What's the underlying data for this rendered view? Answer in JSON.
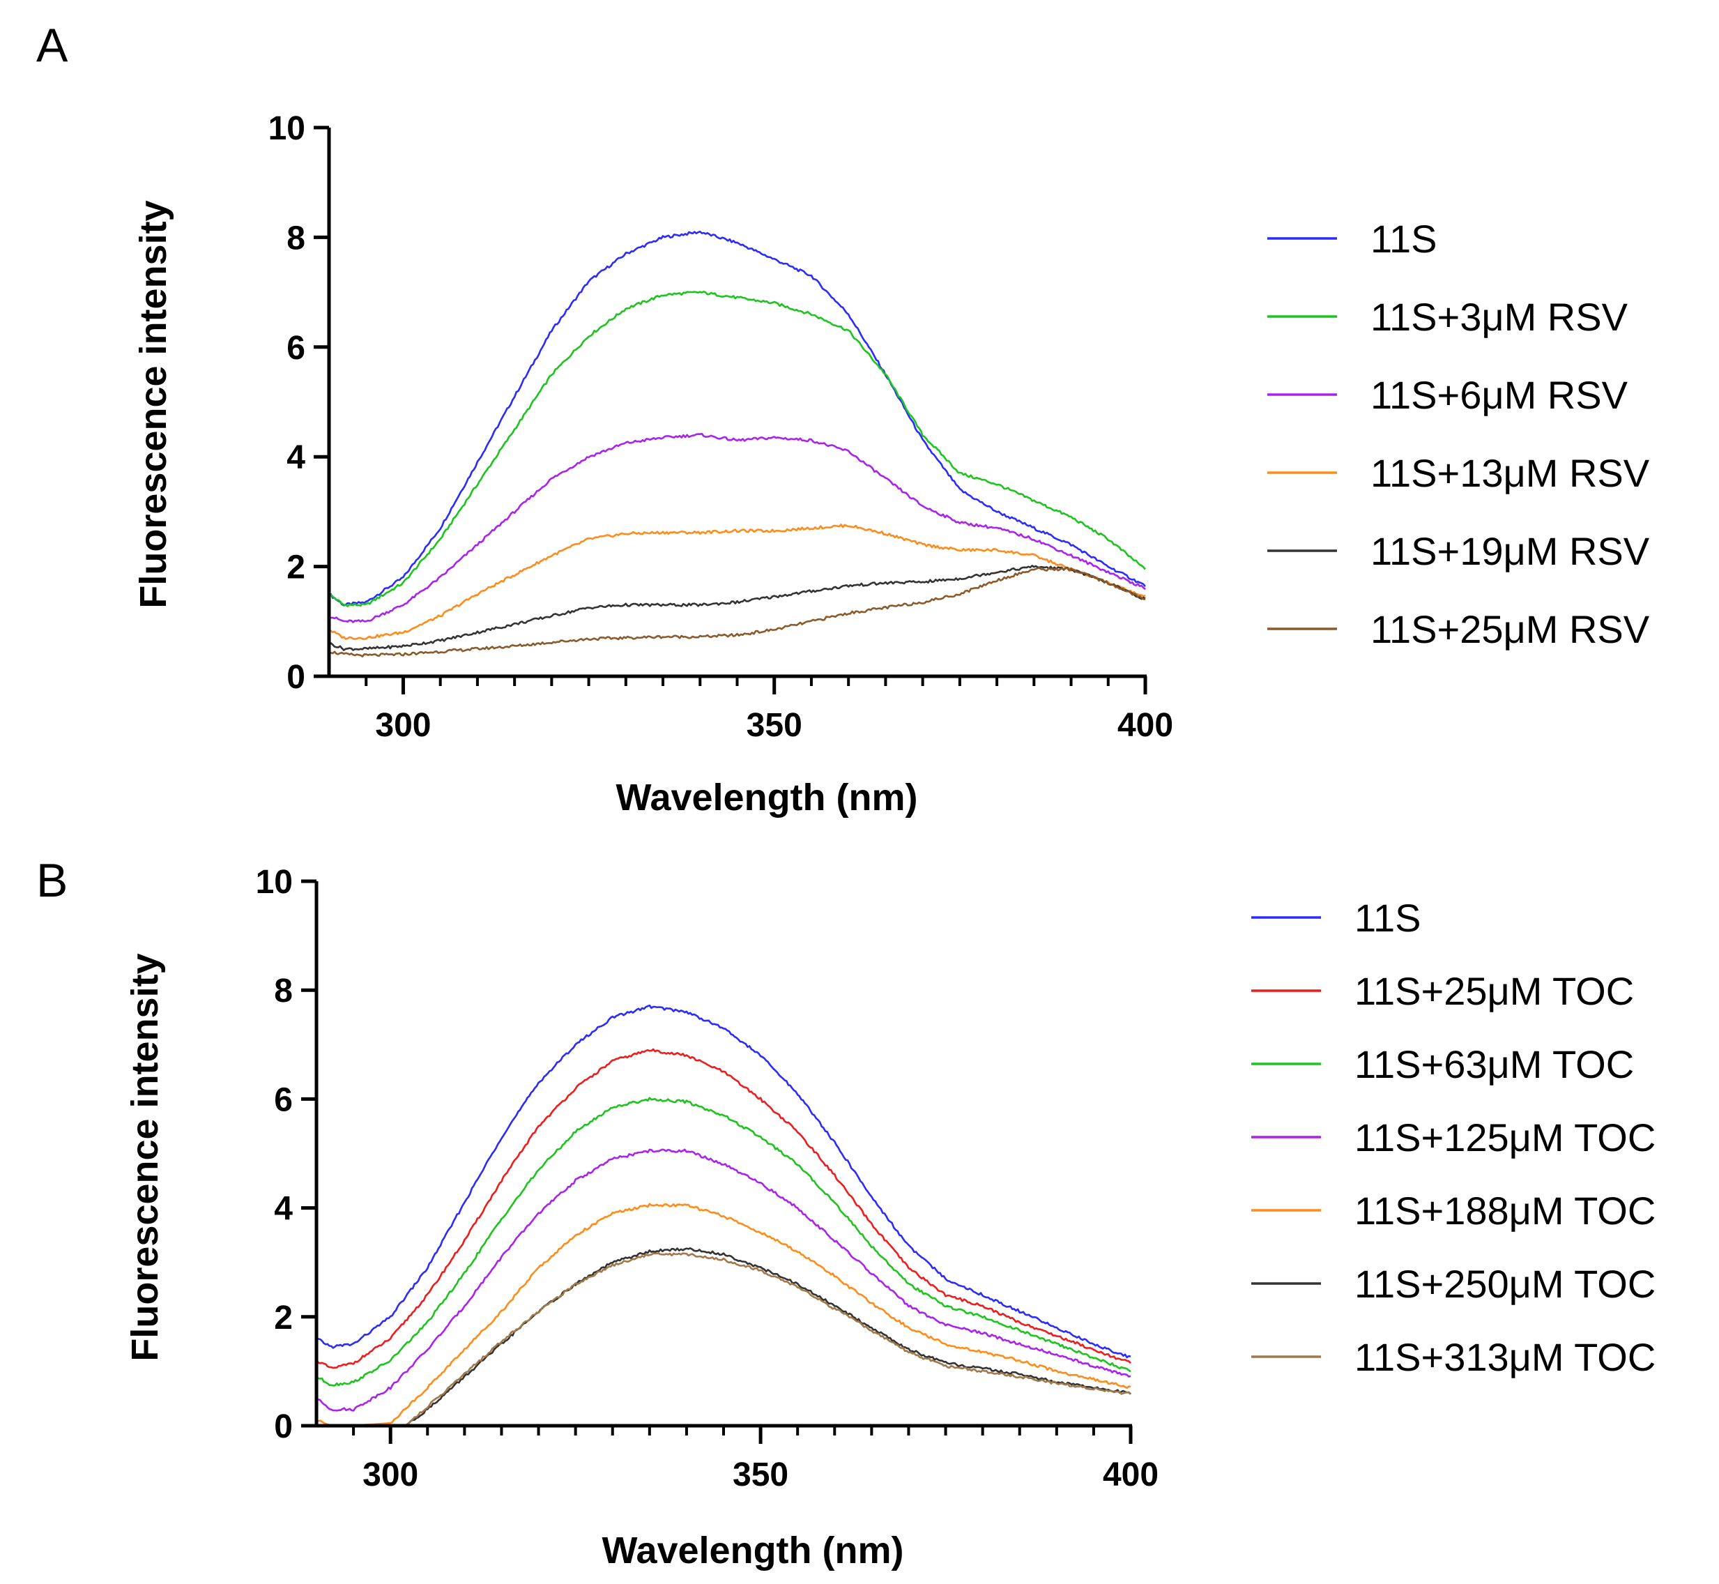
{
  "chart_data": [
    {
      "panel": "A",
      "type": "line",
      "xlabel": "Wavelength (nm)",
      "ylabel": "Fluorescence intensity",
      "xlim": [
        290,
        400
      ],
      "ylim": [
        0,
        10
      ],
      "xticks": [
        300,
        350,
        400
      ],
      "yticks": [
        0,
        2,
        4,
        6,
        8,
        10
      ],
      "legend_position": "right",
      "series": [
        {
          "name": "11S",
          "color": "#2b2bff",
          "x": [
            290,
            292,
            295,
            300,
            305,
            310,
            315,
            320,
            325,
            330,
            335,
            340,
            345,
            350,
            355,
            360,
            365,
            370,
            375,
            380,
            385,
            390,
            395,
            400
          ],
          "y": [
            1.5,
            1.3,
            1.35,
            1.8,
            2.7,
            3.9,
            5.1,
            6.3,
            7.2,
            7.7,
            8.0,
            8.1,
            7.9,
            7.6,
            7.3,
            6.6,
            5.5,
            4.3,
            3.4,
            3.0,
            2.7,
            2.4,
            2.0,
            1.65
          ]
        },
        {
          "name": "11S+3μM RSV",
          "color": "#1ec41e",
          "x": [
            290,
            292,
            295,
            300,
            305,
            310,
            315,
            320,
            325,
            330,
            335,
            340,
            345,
            350,
            355,
            360,
            365,
            370,
            375,
            380,
            385,
            390,
            395,
            400
          ],
          "y": [
            1.5,
            1.3,
            1.3,
            1.7,
            2.5,
            3.5,
            4.5,
            5.5,
            6.2,
            6.7,
            6.95,
            7.0,
            6.9,
            6.8,
            6.6,
            6.3,
            5.5,
            4.4,
            3.7,
            3.5,
            3.2,
            2.9,
            2.5,
            1.95
          ]
        },
        {
          "name": "11S+6μM RSV",
          "color": "#aa22ee",
          "x": [
            290,
            292,
            295,
            300,
            305,
            310,
            315,
            320,
            325,
            330,
            335,
            340,
            345,
            350,
            355,
            360,
            365,
            370,
            375,
            380,
            385,
            390,
            395,
            400
          ],
          "y": [
            1.1,
            1.0,
            1.0,
            1.3,
            1.8,
            2.4,
            3.0,
            3.6,
            4.0,
            4.25,
            4.35,
            4.4,
            4.3,
            4.35,
            4.3,
            4.1,
            3.6,
            3.1,
            2.8,
            2.7,
            2.5,
            2.2,
            1.9,
            1.6
          ]
        },
        {
          "name": "11S+13μM RSV",
          "color": "#ff8c1a",
          "x": [
            290,
            292,
            295,
            300,
            305,
            310,
            315,
            320,
            325,
            330,
            335,
            340,
            345,
            350,
            355,
            360,
            365,
            370,
            375,
            380,
            385,
            390,
            395,
            400
          ],
          "y": [
            0.85,
            0.7,
            0.7,
            0.8,
            1.1,
            1.5,
            1.85,
            2.2,
            2.5,
            2.6,
            2.62,
            2.62,
            2.65,
            2.65,
            2.7,
            2.75,
            2.6,
            2.4,
            2.3,
            2.3,
            2.2,
            1.95,
            1.7,
            1.45
          ]
        },
        {
          "name": "11S+19μM RSV",
          "color": "#333333",
          "x": [
            290,
            292,
            295,
            300,
            305,
            310,
            315,
            320,
            325,
            330,
            335,
            340,
            345,
            350,
            355,
            360,
            365,
            370,
            375,
            380,
            385,
            390,
            395,
            400
          ],
          "y": [
            0.6,
            0.5,
            0.5,
            0.55,
            0.65,
            0.8,
            0.95,
            1.1,
            1.25,
            1.3,
            1.3,
            1.3,
            1.35,
            1.45,
            1.55,
            1.65,
            1.7,
            1.72,
            1.78,
            1.9,
            2.0,
            1.95,
            1.7,
            1.4
          ]
        },
        {
          "name": "11S+25μM RSV",
          "color": "#8b5a2b",
          "x": [
            290,
            292,
            295,
            300,
            305,
            310,
            315,
            320,
            325,
            330,
            335,
            340,
            345,
            350,
            355,
            360,
            365,
            370,
            375,
            380,
            385,
            390,
            395,
            400
          ],
          "y": [
            0.45,
            0.4,
            0.38,
            0.4,
            0.45,
            0.5,
            0.55,
            0.62,
            0.68,
            0.7,
            0.72,
            0.72,
            0.75,
            0.85,
            1.0,
            1.15,
            1.25,
            1.35,
            1.5,
            1.75,
            1.95,
            1.95,
            1.7,
            1.4
          ]
        }
      ]
    },
    {
      "panel": "B",
      "type": "line",
      "xlabel": "Wavelength (nm)",
      "ylabel": "Fluorescence intensity",
      "xlim": [
        290,
        400
      ],
      "ylim": [
        0,
        10
      ],
      "xticks": [
        300,
        350,
        400
      ],
      "yticks": [
        0,
        2,
        4,
        6,
        8,
        10
      ],
      "legend_position": "right",
      "series": [
        {
          "name": "11S",
          "color": "#2b2bff",
          "x": [
            290,
            292,
            295,
            300,
            305,
            310,
            315,
            320,
            325,
            330,
            335,
            340,
            345,
            350,
            355,
            360,
            365,
            370,
            375,
            380,
            385,
            390,
            395,
            400
          ],
          "y": [
            1.6,
            1.45,
            1.5,
            2.0,
            2.9,
            4.1,
            5.3,
            6.3,
            7.0,
            7.5,
            7.7,
            7.6,
            7.3,
            6.8,
            6.1,
            5.2,
            4.2,
            3.3,
            2.7,
            2.4,
            2.1,
            1.8,
            1.5,
            1.25
          ]
        },
        {
          "name": "11S+25μM TOC",
          "color": "#ee1c1c",
          "x": [
            290,
            292,
            295,
            300,
            305,
            310,
            315,
            320,
            325,
            330,
            335,
            340,
            345,
            350,
            355,
            360,
            365,
            370,
            375,
            380,
            385,
            390,
            395,
            400
          ],
          "y": [
            1.2,
            1.05,
            1.15,
            1.6,
            2.4,
            3.4,
            4.5,
            5.5,
            6.2,
            6.7,
            6.9,
            6.8,
            6.5,
            6.0,
            5.4,
            4.6,
            3.7,
            2.9,
            2.4,
            2.2,
            1.9,
            1.65,
            1.4,
            1.15
          ]
        },
        {
          "name": "11S+63μM TOC",
          "color": "#1ec41e",
          "x": [
            290,
            292,
            295,
            300,
            305,
            310,
            315,
            320,
            325,
            330,
            335,
            340,
            345,
            350,
            355,
            360,
            365,
            370,
            375,
            380,
            385,
            390,
            395,
            400
          ],
          "y": [
            0.9,
            0.75,
            0.8,
            1.2,
            1.9,
            2.8,
            3.8,
            4.7,
            5.4,
            5.85,
            6.0,
            5.95,
            5.7,
            5.3,
            4.8,
            4.1,
            3.3,
            2.6,
            2.2,
            2.0,
            1.75,
            1.5,
            1.25,
            1.0
          ]
        },
        {
          "name": "11S+125μM TOC",
          "color": "#aa22ee",
          "x": [
            290,
            292,
            295,
            300,
            305,
            310,
            315,
            320,
            325,
            330,
            335,
            340,
            345,
            350,
            355,
            360,
            365,
            370,
            375,
            380,
            385,
            390,
            395,
            400
          ],
          "y": [
            0.5,
            0.3,
            0.3,
            0.7,
            1.4,
            2.2,
            3.1,
            3.9,
            4.5,
            4.9,
            5.05,
            5.05,
            4.8,
            4.45,
            4.0,
            3.4,
            2.8,
            2.2,
            1.85,
            1.7,
            1.5,
            1.3,
            1.1,
            0.9
          ]
        },
        {
          "name": "11S+188μM TOC",
          "color": "#ff8c1a",
          "x": [
            290,
            292,
            295,
            300,
            305,
            310,
            315,
            320,
            325,
            330,
            335,
            340,
            345,
            350,
            355,
            360,
            365,
            370,
            375,
            380,
            385,
            390,
            395,
            400
          ],
          "y": [
            0.1,
            0.0,
            0.0,
            0.05,
            0.7,
            1.4,
            2.1,
            2.9,
            3.5,
            3.9,
            4.05,
            4.05,
            3.85,
            3.55,
            3.2,
            2.75,
            2.25,
            1.8,
            1.5,
            1.35,
            1.2,
            1.0,
            0.85,
            0.7
          ]
        },
        {
          "name": "11S+250μM TOC",
          "color": "#333333",
          "x": [
            290,
            295,
            300,
            302,
            305,
            310,
            315,
            320,
            325,
            330,
            335,
            340,
            345,
            350,
            355,
            360,
            365,
            370,
            375,
            380,
            385,
            390,
            395,
            400
          ],
          "y": [
            0.0,
            0.0,
            0.0,
            0.0,
            0.3,
            0.9,
            1.5,
            2.1,
            2.6,
            3.0,
            3.2,
            3.25,
            3.15,
            2.9,
            2.6,
            2.2,
            1.8,
            1.4,
            1.15,
            1.05,
            0.95,
            0.8,
            0.7,
            0.6
          ]
        },
        {
          "name": "11S+313μM TOC",
          "color": "#a0784a",
          "x": [
            290,
            295,
            300,
            302,
            305,
            310,
            315,
            320,
            325,
            330,
            335,
            340,
            345,
            350,
            355,
            360,
            365,
            370,
            375,
            380,
            385,
            390,
            395,
            400
          ],
          "y": [
            0.0,
            0.0,
            0.0,
            0.0,
            0.35,
            0.95,
            1.55,
            2.1,
            2.6,
            2.95,
            3.15,
            3.15,
            3.05,
            2.85,
            2.55,
            2.15,
            1.75,
            1.35,
            1.1,
            1.0,
            0.9,
            0.78,
            0.68,
            0.58
          ]
        }
      ]
    }
  ]
}
